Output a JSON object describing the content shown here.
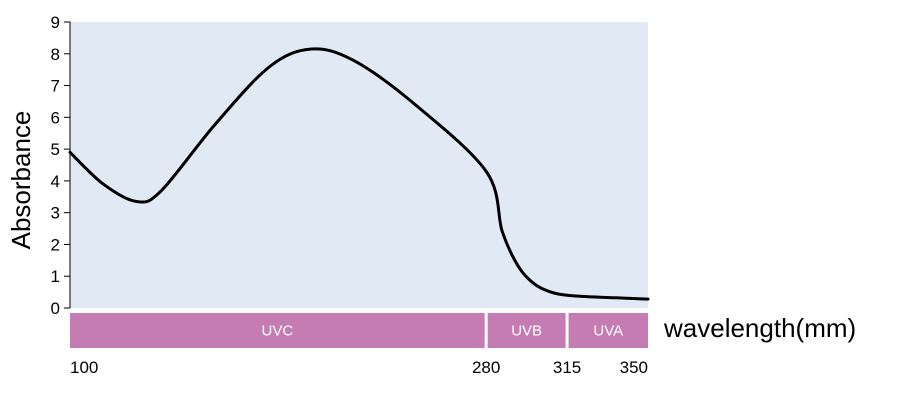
{
  "chart_data": {
    "type": "line",
    "ylabel": "Absorbance",
    "xlabel": "wavelength(mm)",
    "ylim": [
      0,
      9
    ],
    "yticks": [
      "0",
      "1",
      "2",
      "3",
      "4",
      "5",
      "6",
      "7",
      "8",
      "9"
    ],
    "grid": false,
    "background_color": "#e1e9f5",
    "line_color": "#000000",
    "band_color": "#c47cb2",
    "bands": [
      {
        "label": "UVC",
        "from": "100",
        "to": "280"
      },
      {
        "label": "UVB",
        "from": "280",
        "to": "315"
      },
      {
        "label": "UVA",
        "from": "315",
        "to": "350"
      }
    ],
    "band_edges": [
      "100",
      "280",
      "315",
      "350"
    ],
    "series": [
      {
        "points": [
          {
            "band": 0,
            "frac": 0.0,
            "y": 4.9
          },
          {
            "band": 0,
            "frac": 0.08,
            "y": 3.9
          },
          {
            "band": 0,
            "frac": 0.16,
            "y": 3.35
          },
          {
            "band": 0,
            "frac": 0.22,
            "y": 3.7
          },
          {
            "band": 0,
            "frac": 0.35,
            "y": 5.8
          },
          {
            "band": 0,
            "frac": 0.48,
            "y": 7.6
          },
          {
            "band": 0,
            "frac": 0.58,
            "y": 8.15
          },
          {
            "band": 0,
            "frac": 0.68,
            "y": 7.8
          },
          {
            "band": 0,
            "frac": 0.82,
            "y": 6.5
          },
          {
            "band": 0,
            "frac": 1.0,
            "y": 4.3
          },
          {
            "band": 1,
            "frac": 0.2,
            "y": 2.4
          },
          {
            "band": 1,
            "frac": 0.4,
            "y": 1.3
          },
          {
            "band": 1,
            "frac": 0.6,
            "y": 0.75
          },
          {
            "band": 1,
            "frac": 0.8,
            "y": 0.5
          },
          {
            "band": 1,
            "frac": 1.0,
            "y": 0.4
          },
          {
            "band": 2,
            "frac": 0.3,
            "y": 0.35
          },
          {
            "band": 2,
            "frac": 0.6,
            "y": 0.32
          },
          {
            "band": 2,
            "frac": 1.0,
            "y": 0.28
          }
        ]
      }
    ]
  }
}
